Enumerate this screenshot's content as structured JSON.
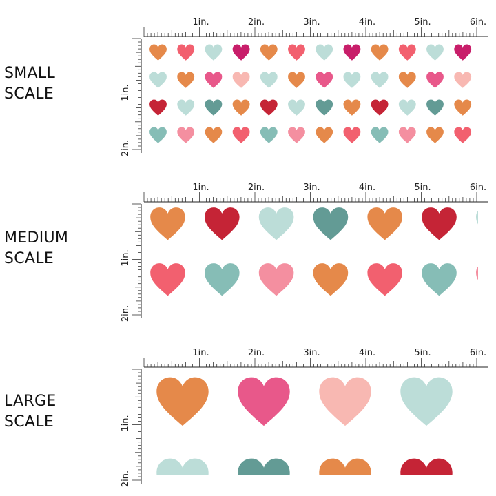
{
  "palette": {
    "orange": "#E5894A",
    "coral": "#F2606F",
    "mint": "#BCDDD8",
    "magenta": "#C81E6A",
    "pink": "#E8588A",
    "peach": "#F8B8B2",
    "red": "#C52436",
    "teal": "#639B95",
    "sage": "#86BDB6",
    "rose": "#F48FA0"
  },
  "ruler_labels": [
    "1in.",
    "2in.",
    "3in.",
    "4in.",
    "5in.",
    "6in."
  ],
  "vertical_labels": [
    "1in.",
    "2in."
  ],
  "sections": [
    {
      "id": "small",
      "label_lines": [
        "SMALL",
        "SCALE"
      ],
      "rows": [
        [
          "orange",
          "coral",
          "mint",
          "magenta",
          "orange",
          "coral",
          "mint",
          "magenta",
          "orange",
          "coral",
          "mint",
          "magenta",
          "coral"
        ],
        [
          "mint",
          "orange",
          "pink",
          "peach",
          "mint",
          "orange",
          "pink",
          "mint",
          "mint",
          "orange",
          "pink",
          "peach",
          "mint"
        ],
        [
          "red",
          "mint",
          "teal",
          "orange",
          "red",
          "mint",
          "teal",
          "orange",
          "red",
          "mint",
          "teal",
          "orange",
          "red"
        ],
        [
          "sage",
          "rose",
          "orange",
          "coral",
          "sage",
          "rose",
          "orange",
          "coral",
          "sage",
          "rose",
          "orange",
          "coral",
          "sage"
        ]
      ]
    },
    {
      "id": "medium",
      "label_lines": [
        "MEDIUM",
        "SCALE"
      ],
      "rows": [
        [
          "orange",
          "red",
          "mint",
          "teal",
          "orange",
          "red",
          "mint"
        ],
        [
          "coral",
          "sage",
          "rose",
          "orange",
          "coral",
          "sage",
          "rose"
        ]
      ]
    },
    {
      "id": "large",
      "label_lines": [
        "LARGE",
        "SCALE"
      ],
      "rows": [
        [
          "orange",
          "pink",
          "peach",
          "mint"
        ],
        [
          "mint",
          "teal",
          "orange",
          "red"
        ]
      ]
    }
  ]
}
